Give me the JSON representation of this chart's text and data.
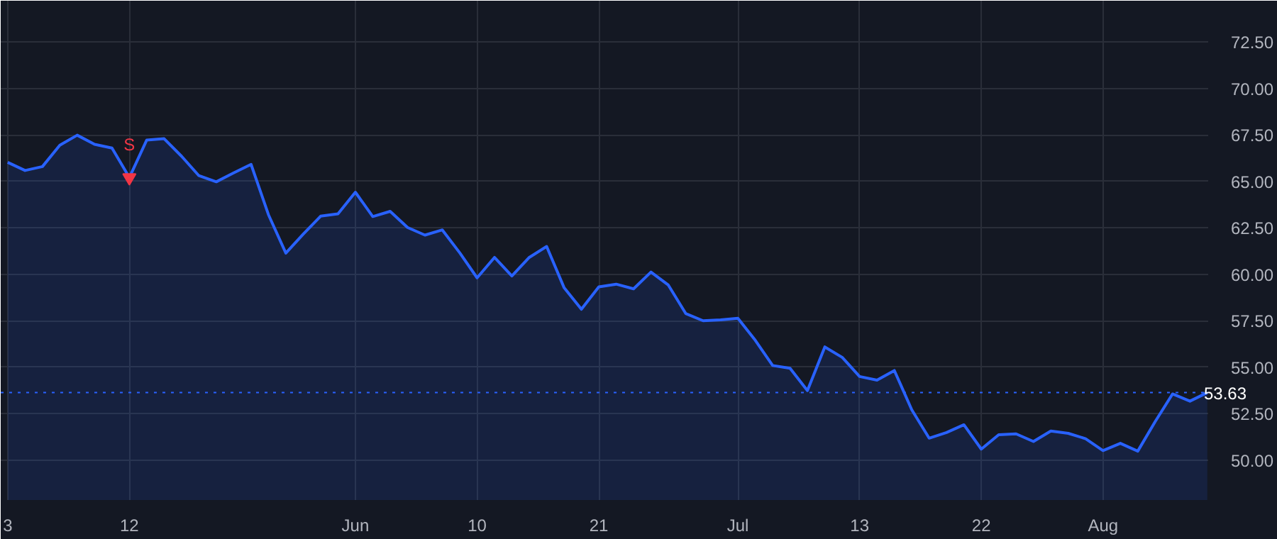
{
  "chart_data": {
    "type": "area",
    "categories": [
      "3",
      null,
      null,
      null,
      null,
      null,
      null,
      "12",
      null,
      null,
      null,
      null,
      null,
      null,
      null,
      null,
      null,
      null,
      null,
      null,
      "Jun",
      null,
      null,
      null,
      null,
      null,
      null,
      "10",
      null,
      null,
      null,
      null,
      null,
      null,
      "21",
      null,
      null,
      null,
      null,
      null,
      null,
      null,
      "Jul",
      null,
      null,
      null,
      null,
      null,
      null,
      "13",
      null,
      null,
      null,
      null,
      null,
      null,
      "22",
      null,
      null,
      null,
      null,
      null,
      null,
      "Aug",
      null,
      null,
      null,
      null,
      null,
      null
    ],
    "series": [
      {
        "color": "#2962ff",
        "values": [
          66.03,
          65.59,
          65.8,
          66.95,
          67.49,
          67.0,
          66.8,
          65.21,
          67.23,
          67.3,
          66.36,
          65.31,
          64.98,
          65.46,
          65.92,
          63.21,
          61.14,
          62.16,
          63.13,
          63.26,
          64.42,
          63.11,
          63.39,
          62.52,
          62.11,
          62.39,
          61.16,
          59.81,
          60.91,
          59.91,
          60.91,
          61.5,
          59.29,
          58.12,
          59.32,
          59.47,
          59.22,
          60.12,
          59.42,
          57.89,
          57.5,
          57.55,
          57.63,
          56.45,
          55.09,
          54.94,
          53.74,
          56.09,
          55.53,
          54.5,
          54.3,
          54.82,
          52.71,
          51.18,
          51.48,
          51.9,
          50.59,
          51.36,
          51.41,
          51.0,
          51.56,
          51.44,
          51.15,
          50.51,
          50.9,
          50.48,
          52.07,
          53.56,
          53.17,
          53.63
        ]
      }
    ],
    "ylim": [
      47.85,
      74.73
    ],
    "yticks": [
      {
        "value": 50,
        "label": "50.00"
      },
      {
        "value": 52.5,
        "label": "52.50"
      },
      {
        "value": 55,
        "label": "55.00"
      },
      {
        "value": 57.5,
        "label": "57.50"
      },
      {
        "value": 60,
        "label": "60.00"
      },
      {
        "value": 62.5,
        "label": "62.50"
      },
      {
        "value": 65,
        "label": "65.00"
      },
      {
        "value": 67.5,
        "label": "67.50"
      },
      {
        "value": 70,
        "label": "70.00"
      },
      {
        "value": 72.5,
        "label": "72.50"
      }
    ],
    "ref_lines": [
      {
        "axis": "y",
        "value": 53.63,
        "label": "53.63",
        "color": "#2962ff",
        "line_style": "dotted"
      }
    ],
    "annotations": [
      {
        "text": "S",
        "x": "12",
        "y": 65.21
      }
    ],
    "grid": true,
    "marker": "none",
    "line_style": "solid"
  }
}
